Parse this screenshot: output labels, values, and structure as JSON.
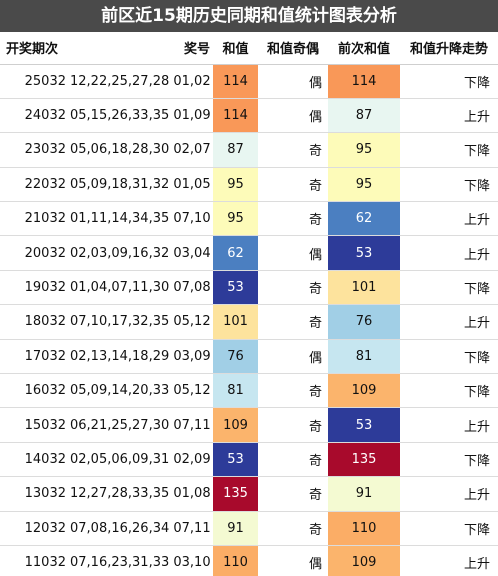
{
  "title": "前区近15期历史同期和值统计图表分析",
  "headers": {
    "period": "开奖期次",
    "award": "奖号",
    "sum": "和值",
    "parity": "和值奇偶",
    "prev_sum": "前次和值",
    "trend": "和值升降走势"
  },
  "rows": [
    {
      "period": "25032",
      "award": "12,22,25,27,28 01,02",
      "sum": "114",
      "parity": "偶",
      "prev_sum": "114",
      "trend": "下降",
      "sum_color": "#f99858",
      "prev_color": "#f99858"
    },
    {
      "period": "24032",
      "award": "05,15,26,33,35 01,09",
      "sum": "114",
      "parity": "偶",
      "prev_sum": "87",
      "trend": "上升",
      "sum_color": "#f99858",
      "prev_color": "#e8f6f1"
    },
    {
      "period": "23032",
      "award": "05,06,18,28,30 02,07",
      "sum": "87",
      "parity": "奇",
      "prev_sum": "95",
      "trend": "下降",
      "sum_color": "#e8f6f1",
      "prev_color": "#fdfbb9"
    },
    {
      "period": "22032",
      "award": "05,09,18,31,32 01,05",
      "sum": "95",
      "parity": "奇",
      "prev_sum": "95",
      "trend": "下降",
      "sum_color": "#fdfbb9",
      "prev_color": "#fdfbb9"
    },
    {
      "period": "21032",
      "award": "01,11,14,34,35 07,10",
      "sum": "95",
      "parity": "奇",
      "prev_sum": "62",
      "trend": "上升",
      "sum_color": "#fdfbb9",
      "prev_color": "#4b7fc1"
    },
    {
      "period": "20032",
      "award": "02,03,09,16,32 03,04",
      "sum": "62",
      "parity": "偶",
      "prev_sum": "53",
      "trend": "上升",
      "sum_color": "#4b7fc1",
      "prev_color": "#2d3b99"
    },
    {
      "period": "19032",
      "award": "01,04,07,11,30 07,08",
      "sum": "53",
      "parity": "奇",
      "prev_sum": "101",
      "trend": "下降",
      "sum_color": "#2d3b99",
      "prev_color": "#fde39d"
    },
    {
      "period": "18032",
      "award": "07,10,17,32,35 05,12",
      "sum": "101",
      "parity": "奇",
      "prev_sum": "76",
      "trend": "上升",
      "sum_color": "#fde39d",
      "prev_color": "#a1cfe6"
    },
    {
      "period": "17032",
      "award": "02,13,14,18,29 03,09",
      "sum": "76",
      "parity": "偶",
      "prev_sum": "81",
      "trend": "下降",
      "sum_color": "#a1cfe6",
      "prev_color": "#c6e6f0"
    },
    {
      "period": "16032",
      "award": "05,09,14,20,33 05,12",
      "sum": "81",
      "parity": "奇",
      "prev_sum": "109",
      "trend": "下降",
      "sum_color": "#c6e6f0",
      "prev_color": "#fbb46c"
    },
    {
      "period": "15032",
      "award": "06,21,25,27,30 07,11",
      "sum": "109",
      "parity": "奇",
      "prev_sum": "53",
      "trend": "上升",
      "sum_color": "#fbb46c",
      "prev_color": "#2d3b99"
    },
    {
      "period": "14032",
      "award": "02,05,06,09,31 02,09",
      "sum": "53",
      "parity": "奇",
      "prev_sum": "135",
      "trend": "下降",
      "sum_color": "#2d3b99",
      "prev_color": "#a80a2c"
    },
    {
      "period": "13032",
      "award": "12,27,28,33,35 01,08",
      "sum": "135",
      "parity": "奇",
      "prev_sum": "91",
      "trend": "上升",
      "sum_color": "#a80a2c",
      "prev_color": "#f4fad2"
    },
    {
      "period": "12032",
      "award": "07,08,16,26,34 07,11",
      "sum": "91",
      "parity": "奇",
      "prev_sum": "110",
      "trend": "下降",
      "sum_color": "#f4fad2",
      "prev_color": "#fbad66"
    },
    {
      "period": "11032",
      "award": "07,16,23,31,33 03,10",
      "sum": "110",
      "parity": "偶",
      "prev_sum": "109",
      "trend": "上升",
      "sum_color": "#fbad66",
      "prev_color": "#fbb46c"
    }
  ],
  "dark_cell_colors": [
    "#4b7fc1",
    "#2d3b99",
    "#a80a2c"
  ]
}
